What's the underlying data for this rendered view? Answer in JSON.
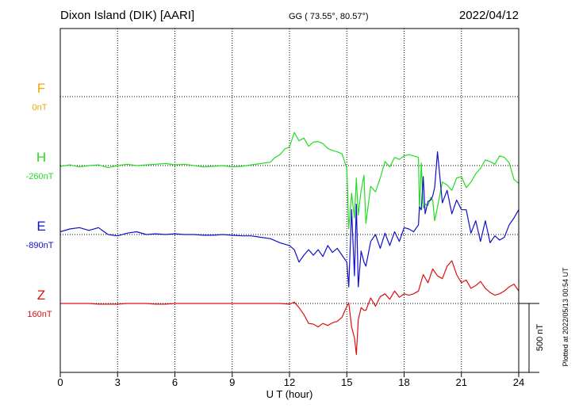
{
  "header": {
    "station": "Dixon Island (DIK)  [AARI]",
    "coords": "GG ( 73.55°,  80.57°)",
    "date": "2022/04/12"
  },
  "footer": {
    "plotted": "Plotted at 2022/05/13 00:54 UT",
    "scale_label": "500 nT"
  },
  "colors": {
    "F": "#f2a800",
    "H": "#22dd22",
    "E": "#1010cc",
    "Z": "#dd1010",
    "axis": "#000000"
  },
  "chart_data": {
    "type": "line",
    "xlabel": "U T (hour)",
    "x_ticks": [
      "0",
      "3",
      "6",
      "9",
      "12",
      "15",
      "18",
      "21",
      "24"
    ],
    "xlim": [
      0,
      24
    ],
    "scale_bar_nT": 500,
    "series": [
      {
        "name": "F",
        "baseline_label": "0nT",
        "color": "#f2a800",
        "x": [],
        "y": []
      },
      {
        "name": "H",
        "baseline_label": "-260nT",
        "color": "#22dd22",
        "x": [
          0,
          0.5,
          1,
          1.5,
          2,
          2.5,
          3,
          3.5,
          4,
          4.5,
          5,
          5.5,
          6,
          6.5,
          7,
          7.5,
          8,
          8.5,
          9,
          9.5,
          10,
          10.5,
          11,
          11.25,
          11.5,
          11.75,
          12,
          12.25,
          12.5,
          12.75,
          13,
          13.25,
          13.5,
          13.75,
          14,
          14.25,
          14.5,
          14.75,
          15,
          15.1,
          15.25,
          15.4,
          15.5,
          15.6,
          15.75,
          15.9,
          16,
          16.25,
          16.5,
          16.75,
          17,
          17.25,
          17.5,
          17.75,
          18,
          18.25,
          18.5,
          18.75,
          18.8,
          18.9,
          19,
          19.1,
          19.25,
          19.4,
          19.5,
          19.6,
          19.75,
          20,
          20.25,
          20.5,
          20.75,
          21,
          21.25,
          21.5,
          21.75,
          22,
          22.25,
          22.5,
          22.75,
          23,
          23.25,
          23.5,
          23.75,
          24
        ],
        "y": [
          -5,
          5,
          -10,
          0,
          5,
          -15,
          0,
          10,
          0,
          5,
          10,
          15,
          5,
          10,
          0,
          -10,
          -5,
          0,
          -10,
          -5,
          5,
          15,
          25,
          60,
          80,
          120,
          135,
          240,
          180,
          200,
          140,
          170,
          175,
          160,
          125,
          110,
          100,
          85,
          -20,
          -460,
          -200,
          -380,
          -90,
          -360,
          -180,
          -70,
          -420,
          -150,
          -190,
          -90,
          30,
          -10,
          60,
          45,
          70,
          80,
          70,
          60,
          -330,
          20,
          -310,
          -280,
          -290,
          -230,
          -250,
          -400,
          -300,
          -120,
          -140,
          -180,
          -90,
          -80,
          -160,
          -120,
          -60,
          -20,
          40,
          30,
          10,
          70,
          60,
          20,
          -100,
          -130
        ]
      },
      {
        "name": "E",
        "baseline_label": "-890nT",
        "color": "#1010cc",
        "x": [
          0,
          0.5,
          1,
          1.5,
          2,
          2.5,
          3,
          3.5,
          4,
          4.5,
          5,
          5.5,
          6,
          6.5,
          7,
          7.5,
          8,
          8.5,
          9,
          9.5,
          10,
          10.5,
          11,
          11.5,
          12,
          12.25,
          12.5,
          12.75,
          13,
          13.25,
          13.5,
          13.75,
          14,
          14.25,
          14.5,
          14.75,
          15,
          15.1,
          15.25,
          15.4,
          15.5,
          15.6,
          15.75,
          15.9,
          16,
          16.25,
          16.5,
          16.75,
          17,
          17.25,
          17.5,
          17.75,
          18,
          18.25,
          18.5,
          18.75,
          18.8,
          18.9,
          19,
          19.1,
          19.25,
          19.4,
          19.5,
          19.6,
          19.75,
          20,
          20.25,
          20.5,
          20.75,
          21,
          21.25,
          21.5,
          21.75,
          22,
          22.25,
          22.5,
          22.75,
          23,
          23.25,
          23.5,
          23.75,
          24
        ],
        "y": [
          20,
          40,
          50,
          30,
          50,
          0,
          -10,
          10,
          20,
          0,
          5,
          0,
          5,
          0,
          0,
          -5,
          -5,
          0,
          -5,
          -10,
          -10,
          -20,
          -30,
          -60,
          -80,
          -110,
          -200,
          -150,
          -110,
          -150,
          -110,
          -160,
          -80,
          -130,
          -100,
          -150,
          -200,
          -380,
          180,
          -300,
          220,
          -380,
          -120,
          -200,
          -230,
          -50,
          0,
          -100,
          10,
          -80,
          20,
          -50,
          50,
          40,
          20,
          70,
          200,
          180,
          420,
          150,
          240,
          250,
          280,
          340,
          600,
          230,
          320,
          150,
          250,
          180,
          180,
          10,
          100,
          -50,
          100,
          -60,
          -10,
          -40,
          -20,
          70,
          120,
          180
        ]
      },
      {
        "name": "Z",
        "baseline_label": "160nT",
        "color": "#dd1010",
        "x": [
          0,
          0.5,
          1,
          1.5,
          2,
          2.5,
          3,
          3.5,
          4,
          4.5,
          5,
          5.5,
          6,
          6.5,
          7,
          7.5,
          8,
          8.5,
          9,
          9.5,
          10,
          10.5,
          11,
          11.5,
          12,
          12.25,
          12.5,
          12.75,
          13,
          13.25,
          13.5,
          13.75,
          14,
          14.25,
          14.5,
          14.75,
          15,
          15.1,
          15.25,
          15.4,
          15.5,
          15.6,
          15.75,
          15.9,
          16,
          16.25,
          16.5,
          16.75,
          17,
          17.25,
          17.5,
          17.75,
          18,
          18.25,
          18.5,
          18.75,
          19,
          19.25,
          19.5,
          19.75,
          20,
          20.25,
          20.5,
          20.75,
          21,
          21.25,
          21.5,
          21.75,
          22,
          22.25,
          22.5,
          22.75,
          23,
          23.25,
          23.5,
          23.75,
          24
        ],
        "y": [
          0,
          0,
          0,
          0,
          -5,
          -5,
          -5,
          0,
          0,
          0,
          -5,
          -5,
          0,
          0,
          0,
          0,
          0,
          0,
          0,
          0,
          0,
          0,
          0,
          0,
          -5,
          10,
          -30,
          -80,
          -145,
          -150,
          -170,
          -145,
          -160,
          -140,
          -130,
          -100,
          -20,
          5,
          -170,
          -250,
          -370,
          -120,
          -30,
          -50,
          -50,
          40,
          -20,
          50,
          70,
          30,
          90,
          45,
          70,
          60,
          70,
          90,
          210,
          150,
          250,
          200,
          180,
          270,
          310,
          210,
          150,
          170,
          110,
          130,
          160,
          110,
          80,
          60,
          70,
          90,
          120,
          140,
          90
        ]
      }
    ]
  }
}
